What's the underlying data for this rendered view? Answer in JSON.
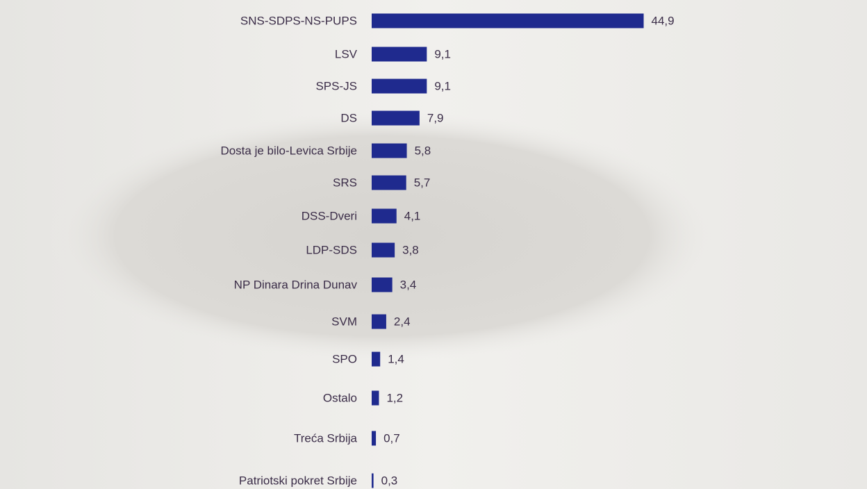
{
  "chart_data": {
    "type": "bar",
    "orientation": "horizontal",
    "color": "#1f2a8e",
    "categories": [
      "SNS-SDPS-NS-PUPS",
      "LSV",
      "SPS-JS",
      "DS",
      "Dosta je bilo-Levica Srbije",
      "SRS",
      "DSS-Dveri",
      "LDP-SDS",
      "NP Dinara Drina Dunav",
      "SVM",
      "SPO",
      "Ostalo",
      "Treća Srbija",
      "Patriotski pokret Srbije"
    ],
    "values": [
      44.9,
      9.1,
      9.1,
      7.9,
      5.8,
      5.7,
      4.1,
      3.8,
      3.4,
      2.4,
      1.4,
      1.2,
      0.7,
      0.3
    ],
    "value_labels": [
      "44,9",
      "9,1",
      "9,1",
      "7,9",
      "5,8",
      "5,7",
      "4,1",
      "3,8",
      "3,4",
      "2,4",
      "1,4",
      "1,2",
      "0,7",
      "0,3"
    ]
  }
}
